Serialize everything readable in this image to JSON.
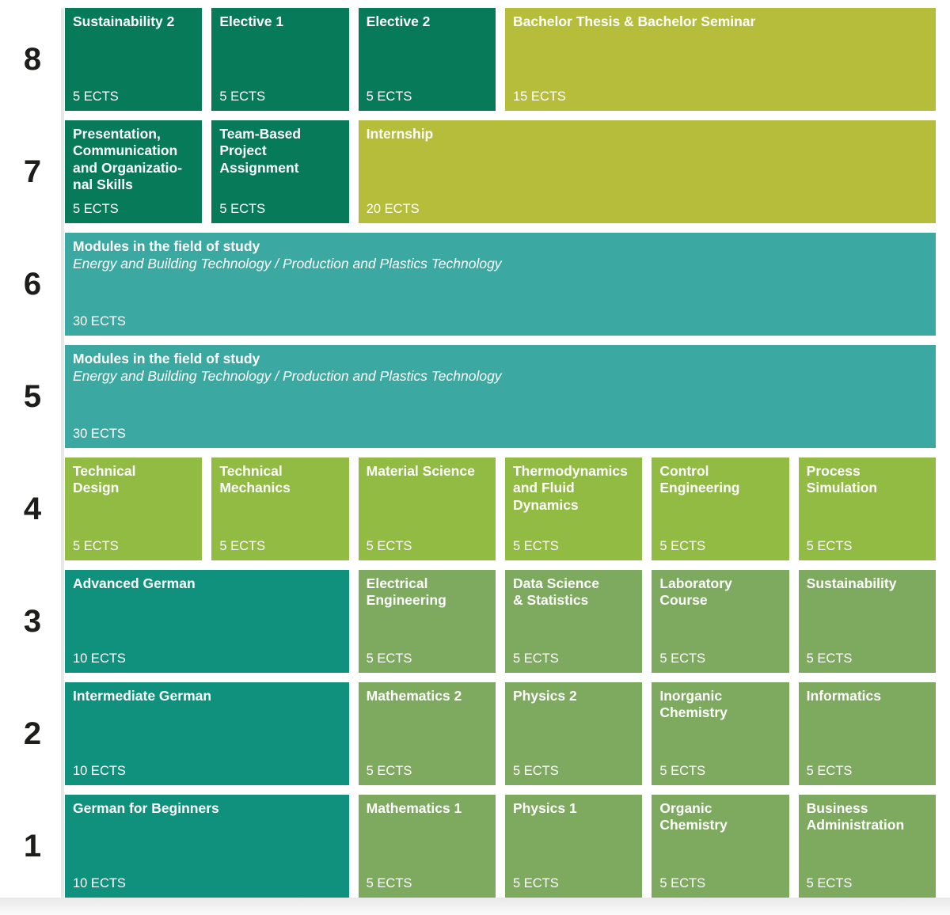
{
  "palette": {
    "dark_green": "#067a59",
    "olive": "#b5bd3a",
    "teal": "#3ba9a2",
    "lime": "#92bb44",
    "deep_teal": "#0f917e",
    "medium_green": "#7daa5e",
    "text": "#ffffff",
    "number_black": "#1d1d1b",
    "rule_gray": "#e8e8e8"
  },
  "semesters": [
    {
      "number": "8",
      "modules": [
        {
          "title": "Sustainability 2",
          "ects": "5 ECTS",
          "color": "dark_green",
          "span": 1
        },
        {
          "title": "Elective 1",
          "ects": "5 ECTS",
          "color": "dark_green",
          "span": 1
        },
        {
          "title": "Elective 2",
          "ects": "5 ECTS",
          "color": "dark_green",
          "span": 1
        },
        {
          "title": "Bachelor Thesis & Bachelor Seminar",
          "ects": "15 ECTS",
          "color": "olive",
          "span": 3
        }
      ]
    },
    {
      "number": "7",
      "modules": [
        {
          "title": "Presentation,\nCommunication\nand Organizatio-\nnal Skills",
          "ects": "5 ECTS",
          "color": "dark_green",
          "span": 1
        },
        {
          "title": "Team-Based\nProject\nAssignment",
          "ects": "5 ECTS",
          "color": "dark_green",
          "span": 1
        },
        {
          "title": "Internship",
          "ects": "20 ECTS",
          "color": "olive",
          "span": 4
        }
      ]
    },
    {
      "number": "6",
      "modules": [
        {
          "title": "Modules in the field of study",
          "subtitle": "Energy and Building Technology / Production and Plastics Technology",
          "ects": "30 ECTS",
          "color": "teal",
          "span": 6
        }
      ]
    },
    {
      "number": "5",
      "modules": [
        {
          "title": "Modules in the field of study",
          "subtitle": "Energy and Building Technology / Production and Plastics Technology",
          "ects": "30 ECTS",
          "color": "teal",
          "span": 6
        }
      ]
    },
    {
      "number": "4",
      "modules": [
        {
          "title": "Technical\nDesign",
          "ects": "5 ECTS",
          "color": "lime",
          "span": 1
        },
        {
          "title": "Technical\nMechanics",
          "ects": "5 ECTS",
          "color": "lime",
          "span": 1
        },
        {
          "title": "Material Science",
          "ects": "5 ECTS",
          "color": "lime",
          "span": 1
        },
        {
          "title": "Thermodynamics\nand Fluid\nDynamics",
          "ects": "5 ECTS",
          "color": "lime",
          "span": 1
        },
        {
          "title": "Control\nEngineering",
          "ects": "5 ECTS",
          "color": "lime",
          "span": 1
        },
        {
          "title": "Process\nSimulation",
          "ects": "5 ECTS",
          "color": "lime",
          "span": 1
        }
      ]
    },
    {
      "number": "3",
      "modules": [
        {
          "title": "Advanced German",
          "ects": "10 ECTS",
          "color": "deep_teal",
          "span": 2
        },
        {
          "title": "Electrical\nEngineering",
          "ects": "5 ECTS",
          "color": "medium_green",
          "span": 1
        },
        {
          "title": "Data Science\n& Statistics",
          "ects": "5 ECTS",
          "color": "medium_green",
          "span": 1
        },
        {
          "title": "Laboratory\nCourse",
          "ects": "5 ECTS",
          "color": "medium_green",
          "span": 1
        },
        {
          "title": "Sustainability",
          "ects": "5 ECTS",
          "color": "medium_green",
          "span": 1
        }
      ]
    },
    {
      "number": "2",
      "modules": [
        {
          "title": "Intermediate German",
          "ects": "10 ECTS",
          "color": "deep_teal",
          "span": 2
        },
        {
          "title": "Mathematics 2",
          "ects": "5 ECTS",
          "color": "medium_green",
          "span": 1
        },
        {
          "title": "Physics 2",
          "ects": "5 ECTS",
          "color": "medium_green",
          "span": 1
        },
        {
          "title": "Inorganic\nChemistry",
          "ects": "5 ECTS",
          "color": "medium_green",
          "span": 1
        },
        {
          "title": "Informatics",
          "ects": "5 ECTS",
          "color": "medium_green",
          "span": 1
        }
      ]
    },
    {
      "number": "1",
      "modules": [
        {
          "title": "German for Beginners",
          "ects": "10 ECTS",
          "color": "deep_teal",
          "span": 2
        },
        {
          "title": "Mathematics 1",
          "ects": "5 ECTS",
          "color": "medium_green",
          "span": 1
        },
        {
          "title": "Physics 1",
          "ects": "5 ECTS",
          "color": "medium_green",
          "span": 1
        },
        {
          "title": "Organic\nChemistry",
          "ects": "5 ECTS",
          "color": "medium_green",
          "span": 1
        },
        {
          "title": "Business\nAdministration",
          "ects": "5 ECTS",
          "color": "medium_green",
          "span": 1
        }
      ]
    }
  ]
}
